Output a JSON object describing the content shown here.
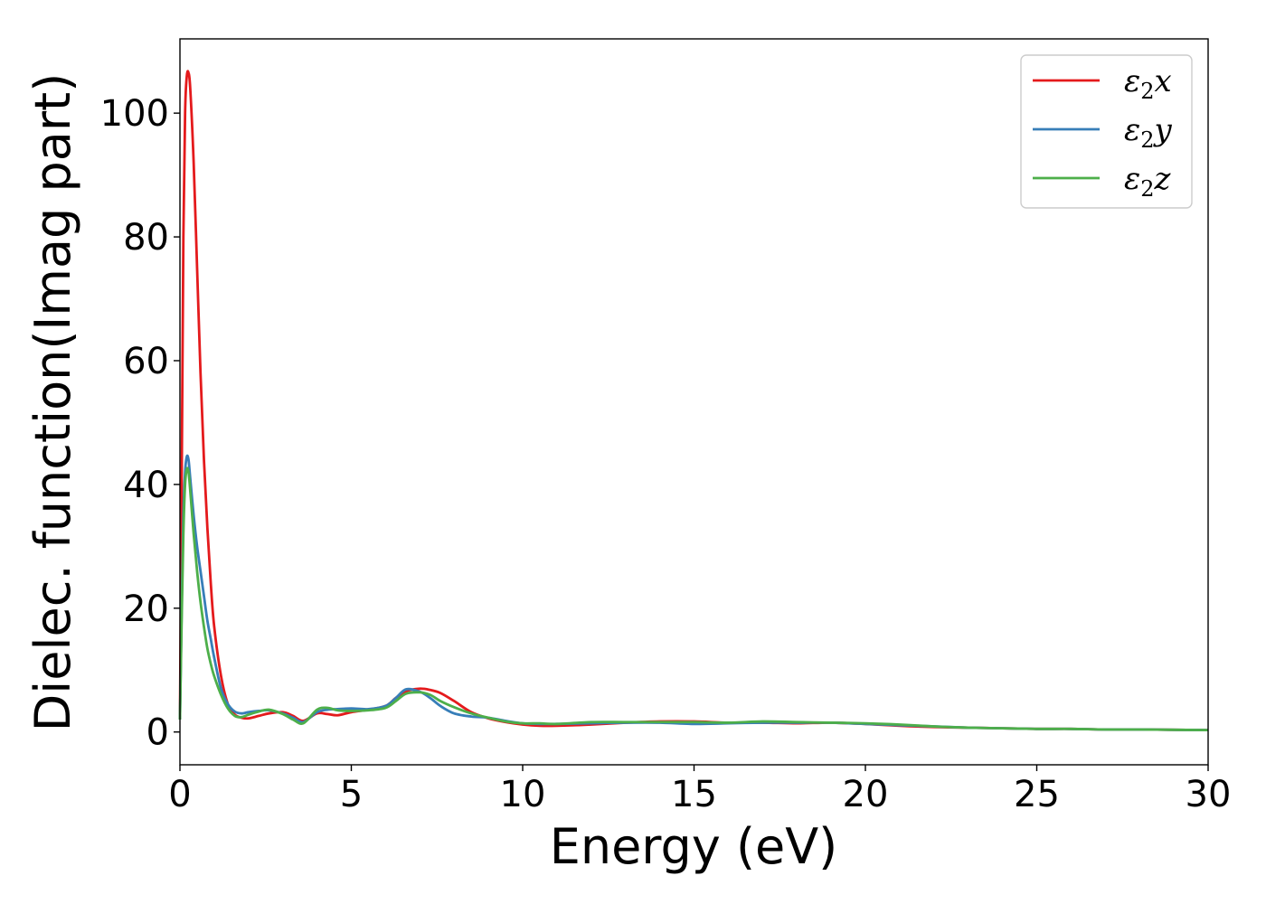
{
  "chart_data": {
    "type": "line",
    "title": "",
    "xlabel": "Energy (eV)",
    "ylabel": "Dielec. function(Imag part)",
    "xlim": [
      0,
      30
    ],
    "ylim": [
      -5.3,
      112
    ],
    "xticks": [
      0,
      5,
      10,
      15,
      20,
      25,
      30
    ],
    "yticks": [
      0,
      20,
      40,
      60,
      80,
      100
    ],
    "grid": false,
    "legend_position": "top-right",
    "legend": [
      {
        "base": "ε",
        "sub": "2",
        "var": "x"
      },
      {
        "base": "ε",
        "sub": "2",
        "var": "y"
      },
      {
        "base": "ε",
        "sub": "2",
        "var": "z"
      }
    ],
    "series": [
      {
        "name": "ε2x",
        "color": "#e41a1c",
        "x": [
          0,
          0.05,
          0.1,
          0.15,
          0.2,
          0.25,
          0.3,
          0.4,
          0.5,
          0.6,
          0.7,
          0.8,
          0.9,
          1.0,
          1.2,
          1.4,
          1.6,
          1.8,
          2.0,
          2.3,
          2.6,
          3.0,
          3.3,
          3.6,
          4.0,
          4.3,
          4.6,
          5.0,
          5.5,
          6.0,
          6.3,
          6.6,
          7.0,
          7.3,
          7.6,
          8.0,
          8.5,
          9.0,
          9.5,
          10.0,
          10.5,
          11.0,
          12.0,
          13.0,
          14.0,
          15.0,
          16.0,
          17.0,
          18.0,
          19.0,
          20.0,
          21.0,
          22.0,
          23.0,
          24.0,
          25.0,
          26.0,
          27.0,
          28.0,
          29.0,
          30.0
        ],
        "y": [
          2,
          40,
          80,
          100,
          106,
          106.5,
          104,
          92,
          75,
          58,
          44,
          33,
          24,
          17,
          9,
          4.5,
          2.8,
          2.3,
          2.2,
          2.6,
          3.0,
          3.2,
          2.6,
          1.8,
          3.0,
          2.9,
          2.7,
          3.2,
          3.6,
          4.2,
          5.5,
          6.6,
          7.0,
          6.8,
          6.3,
          5.0,
          3.2,
          2.2,
          1.6,
          1.2,
          1.0,
          1.0,
          1.2,
          1.5,
          1.7,
          1.7,
          1.5,
          1.5,
          1.4,
          1.5,
          1.3,
          1.0,
          0.8,
          0.7,
          0.6,
          0.5,
          0.5,
          0.4,
          0.4,
          0.35,
          0.3
        ]
      },
      {
        "name": "ε2y",
        "color": "#377eb8",
        "x": [
          0,
          0.05,
          0.1,
          0.15,
          0.2,
          0.25,
          0.3,
          0.4,
          0.5,
          0.6,
          0.7,
          0.8,
          0.9,
          1.0,
          1.2,
          1.4,
          1.6,
          1.8,
          2.0,
          2.3,
          2.6,
          3.0,
          3.3,
          3.6,
          4.0,
          4.3,
          4.6,
          5.0,
          5.5,
          6.0,
          6.3,
          6.6,
          7.0,
          7.3,
          7.6,
          8.0,
          8.5,
          9.0,
          9.5,
          10.0,
          10.5,
          11.0,
          12.0,
          13.0,
          14.0,
          15.0,
          16.0,
          17.0,
          18.0,
          19.0,
          20.0,
          21.0,
          22.0,
          23.0,
          24.0,
          25.0,
          26.0,
          27.0,
          28.0,
          29.0,
          30.0
        ],
        "y": [
          2,
          20,
          35,
          42,
          44.5,
          44,
          41,
          35,
          30,
          26,
          22,
          18,
          15,
          12,
          7,
          4.5,
          3.3,
          3.0,
          3.2,
          3.4,
          3.5,
          3.0,
          2.3,
          1.6,
          3.2,
          3.6,
          3.7,
          3.8,
          3.7,
          4.2,
          5.5,
          6.9,
          6.5,
          5.5,
          4.2,
          3.0,
          2.5,
          2.3,
          1.8,
          1.4,
          1.3,
          1.3,
          1.4,
          1.5,
          1.5,
          1.3,
          1.4,
          1.5,
          1.5,
          1.5,
          1.3,
          1.1,
          0.9,
          0.7,
          0.6,
          0.5,
          0.5,
          0.4,
          0.4,
          0.35,
          0.3
        ]
      },
      {
        "name": "ε2z",
        "color": "#4daf4a",
        "x": [
          0,
          0.05,
          0.1,
          0.15,
          0.2,
          0.25,
          0.3,
          0.4,
          0.5,
          0.6,
          0.7,
          0.8,
          0.9,
          1.0,
          1.2,
          1.4,
          1.6,
          1.8,
          2.0,
          2.3,
          2.6,
          3.0,
          3.3,
          3.6,
          4.0,
          4.3,
          4.6,
          5.0,
          5.5,
          6.0,
          6.3,
          6.6,
          7.0,
          7.3,
          7.6,
          8.0,
          8.5,
          9.0,
          9.5,
          10.0,
          10.5,
          11.0,
          12.0,
          13.0,
          14.0,
          15.0,
          16.0,
          17.0,
          18.0,
          19.0,
          20.0,
          21.0,
          22.0,
          23.0,
          24.0,
          25.0,
          26.0,
          27.0,
          28.0,
          29.0,
          30.0
        ],
        "y": [
          2,
          18,
          32,
          40,
          42.5,
          42,
          39,
          32,
          26,
          21,
          17,
          13.5,
          11,
          9,
          6,
          3.8,
          2.6,
          2.4,
          2.8,
          3.3,
          3.6,
          2.9,
          2.0,
          1.4,
          3.6,
          3.9,
          3.5,
          3.4,
          3.5,
          3.9,
          5.0,
          6.2,
          6.4,
          6.0,
          5.0,
          4.0,
          3.0,
          2.3,
          1.7,
          1.4,
          1.4,
          1.3,
          1.6,
          1.6,
          1.6,
          1.6,
          1.5,
          1.7,
          1.6,
          1.5,
          1.4,
          1.2,
          0.9,
          0.7,
          0.6,
          0.5,
          0.5,
          0.4,
          0.4,
          0.35,
          0.3
        ]
      }
    ]
  }
}
